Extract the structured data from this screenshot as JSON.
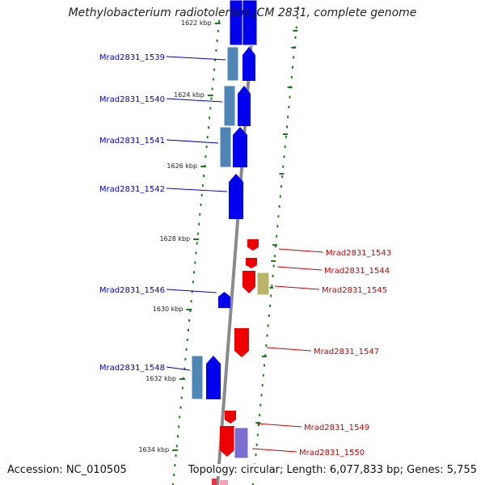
{
  "title": "Methylobacterium radiotolerans JCM 2831, complete genome",
  "accession": "Accession: NC_010505",
  "summary": "Topology: circular; Length: 6,077,833 bp; Genes: 5,755",
  "colors": {
    "forward_gene": "#0000ee",
    "reverse_gene": "#ee0000",
    "forward_label": "#0000cc",
    "reverse_label": "#cc0000",
    "feature_steel": "#4f86b6",
    "feature_olive": "#b8b46a",
    "feature_violet": "#7a6fd0",
    "tick_mark": "#1f7a1f",
    "backbone": "#8a8a8a"
  },
  "kbp_ticks": [
    "1622 kbp",
    "1624 kbp",
    "1626 kbp",
    "1628 kbp",
    "1630 kbp",
    "1632 kbp",
    "1634 kbp"
  ],
  "forward_genes": [
    "Mrad2831_1539",
    "Mrad2831_1540",
    "Mrad2831_1541",
    "Mrad2831_1542",
    "Mrad2831_1546",
    "Mrad2831_1548"
  ],
  "reverse_genes": [
    "Mrad2831_1543",
    "Mrad2831_1544",
    "Mrad2831_1545",
    "Mrad2831_1547",
    "Mrad2831_1549",
    "Mrad2831_1550"
  ]
}
